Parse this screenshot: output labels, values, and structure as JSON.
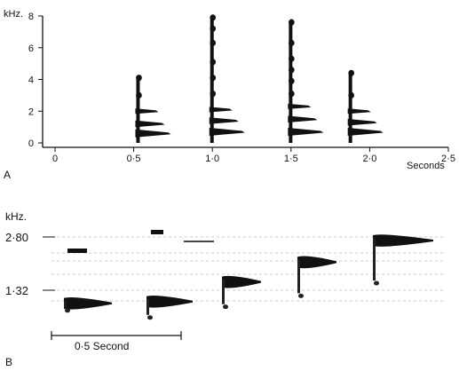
{
  "chart_data": [
    {
      "panel": "A",
      "type": "scatter",
      "ylabel": "kHz.",
      "xlabel": "Seconds",
      "xlim": [
        0,
        2.5
      ],
      "ylim": [
        0,
        8
      ],
      "x_ticks": [
        0,
        0.5,
        1.0,
        1.5,
        2.0,
        2.5
      ],
      "x_tick_labels": [
        "0",
        "0·5",
        "1·0",
        "1·5",
        "2·0",
        "2·5"
      ],
      "y_ticks": [
        0,
        2,
        4,
        6,
        8
      ],
      "y_tick_labels": [
        "0",
        "2",
        "4",
        "6",
        "8"
      ],
      "calls": [
        {
          "t": 0.55,
          "max_khz": 4.2,
          "bands_khz": [
            0.6,
            1.2,
            2.0,
            3.0,
            4.1
          ]
        },
        {
          "t": 1.02,
          "max_khz": 7.9,
          "bands_khz": [
            0.7,
            1.4,
            2.1,
            3.1,
            4.1,
            5.1,
            6.3,
            7.2,
            7.9
          ]
        },
        {
          "t": 1.52,
          "max_khz": 7.6,
          "bands_khz": [
            0.7,
            1.5,
            2.3,
            3.1,
            3.9,
            4.6,
            5.3,
            6.3,
            7.6
          ]
        },
        {
          "t": 1.9,
          "max_khz": 4.5,
          "bands_khz": [
            0.7,
            1.3,
            2.0,
            3.0,
            4.4
          ]
        }
      ]
    },
    {
      "panel": "B",
      "type": "scatter",
      "ylabel": "kHz.",
      "y_tick_labels": [
        "2·80",
        "1·32"
      ],
      "y_ticks_khz": [
        2.8,
        1.32
      ],
      "scale_bar_label": "0·5 Second",
      "notes": [
        {
          "name": "note-1",
          "khz": 1.3
        },
        {
          "name": "note-2",
          "khz": 1.35
        },
        {
          "name": "note-3",
          "khz": 1.55
        },
        {
          "name": "note-4",
          "khz": 2.1
        },
        {
          "name": "note-5",
          "khz": 2.7
        }
      ]
    }
  ],
  "panel_labels": {
    "a": "A",
    "b": "B"
  }
}
